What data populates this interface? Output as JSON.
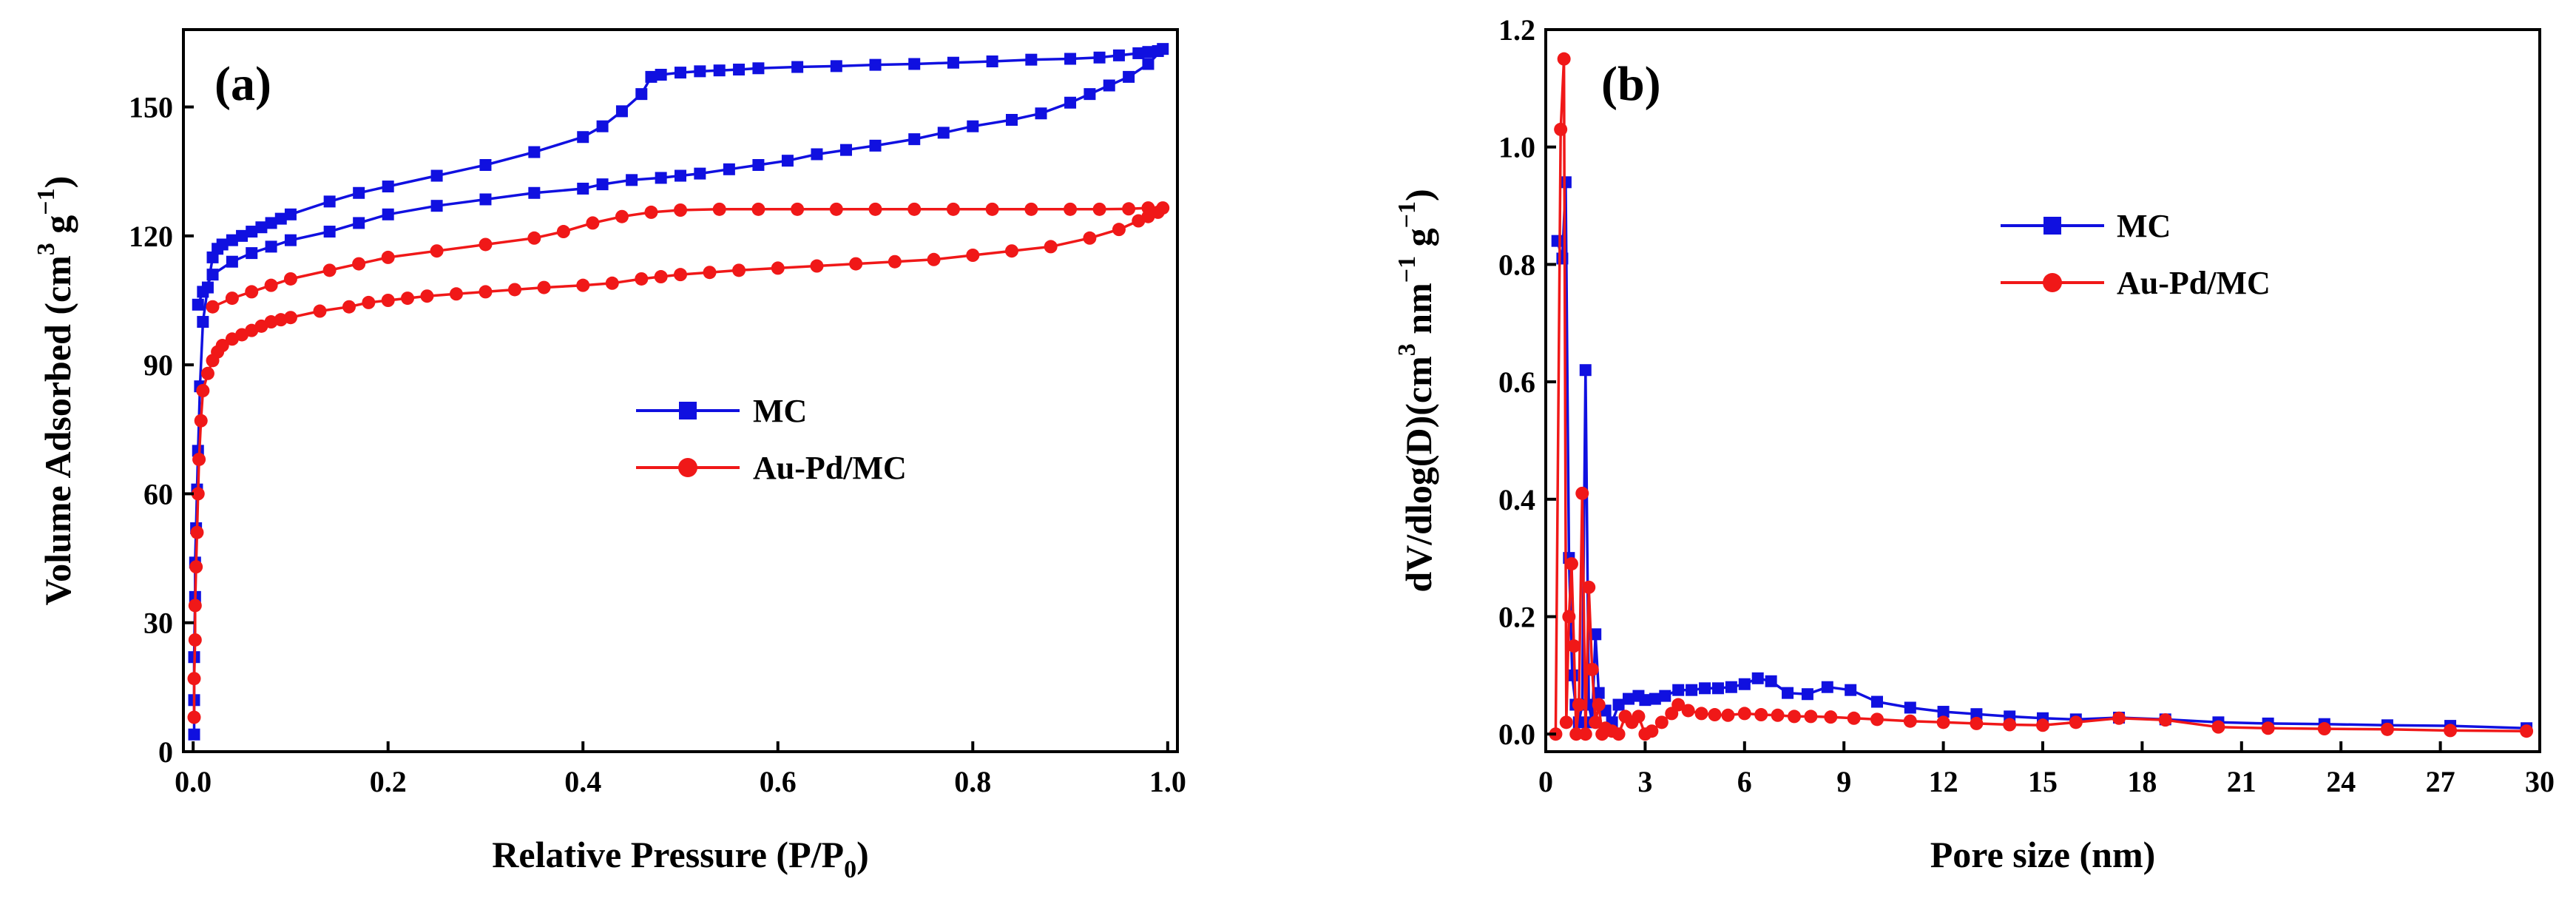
{
  "chart_data": [
    {
      "type": "line",
      "panel_label": "(a)",
      "xlabel": "Relative Pressure (P/P",
      "xlabel_sub": "0",
      "xlabel_end": ")",
      "ylabel": "Volume Adsorbed (cm",
      "ylabel_sup1": "3",
      "ylabel_mid": " g",
      "ylabel_sup2": "−1",
      "ylabel_end": ")",
      "xlim": [
        -0.01,
        1.01
      ],
      "ylim": [
        0,
        168
      ],
      "xticks": [
        0.0,
        0.2,
        0.4,
        0.6,
        0.8,
        1.0
      ],
      "xtick_labels": [
        "0.0",
        "0.2",
        "0.4",
        "0.6",
        "0.8",
        "1.0"
      ],
      "yticks": [
        0,
        30,
        60,
        90,
        120,
        150
      ],
      "ytick_labels": [
        "0",
        "30",
        "60",
        "90",
        "120",
        "150"
      ],
      "legend_position": "center",
      "series": [
        {
          "name": "MC",
          "color": "#1010e0",
          "marker": "square",
          "x": [
            0.001,
            0.001,
            0.001,
            0.002,
            0.002,
            0.003,
            0.004,
            0.005,
            0.007,
            0.01,
            0.015,
            0.02,
            0.025,
            0.03,
            0.04,
            0.05,
            0.06,
            0.07,
            0.08,
            0.09,
            0.1,
            0.14,
            0.17,
            0.2,
            0.25,
            0.3,
            0.35,
            0.4,
            0.42,
            0.44,
            0.46,
            0.47,
            0.48,
            0.5,
            0.52,
            0.54,
            0.56,
            0.58,
            0.62,
            0.66,
            0.7,
            0.74,
            0.78,
            0.82,
            0.86,
            0.9,
            0.93,
            0.95,
            0.97,
            0.98,
            0.99,
            0.995,
            0.98,
            0.96,
            0.94,
            0.92,
            0.9,
            0.87,
            0.84,
            0.8,
            0.77,
            0.74,
            0.7,
            0.67,
            0.64,
            0.61,
            0.58,
            0.55,
            0.52,
            0.5,
            0.48,
            0.45,
            0.42,
            0.4,
            0.35,
            0.3,
            0.25,
            0.2,
            0.17,
            0.14,
            0.1,
            0.08,
            0.06,
            0.04,
            0.02,
            0.01,
            0.005
          ],
          "y": [
            4,
            12,
            22,
            36,
            44,
            52,
            61,
            70,
            85,
            100,
            108,
            115,
            117,
            118,
            119,
            120,
            121,
            122,
            123,
            124,
            125,
            128,
            130,
            131.5,
            134,
            136.5,
            139.5,
            143,
            145.5,
            149,
            153,
            157,
            157.5,
            158,
            158.3,
            158.5,
            158.7,
            159,
            159.3,
            159.5,
            159.8,
            160,
            160.3,
            160.6,
            161,
            161.2,
            161.5,
            162,
            162.5,
            162.8,
            163,
            163.5,
            160,
            157,
            155,
            153,
            151,
            148.5,
            147,
            145.5,
            144,
            142.5,
            141,
            140,
            139,
            137.5,
            136.5,
            135.5,
            134.5,
            134,
            133.5,
            133,
            132,
            131,
            130,
            128.5,
            127,
            125,
            123,
            121,
            119,
            117.5,
            116,
            114,
            111,
            107,
            104
          ]
        },
        {
          "name": "Au-Pd/MC",
          "color": "#f01818",
          "marker": "circle",
          "x": [
            0.001,
            0.001,
            0.002,
            0.002,
            0.003,
            0.004,
            0.005,
            0.006,
            0.008,
            0.01,
            0.015,
            0.02,
            0.025,
            0.03,
            0.04,
            0.05,
            0.06,
            0.07,
            0.08,
            0.09,
            0.1,
            0.13,
            0.16,
            0.18,
            0.2,
            0.22,
            0.24,
            0.27,
            0.3,
            0.33,
            0.36,
            0.4,
            0.43,
            0.46,
            0.48,
            0.5,
            0.53,
            0.56,
            0.6,
            0.64,
            0.68,
            0.72,
            0.76,
            0.8,
            0.84,
            0.88,
            0.92,
            0.95,
            0.97,
            0.98,
            0.99,
            0.995,
            0.98,
            0.96,
            0.93,
            0.9,
            0.86,
            0.82,
            0.78,
            0.74,
            0.7,
            0.66,
            0.62,
            0.58,
            0.54,
            0.5,
            0.47,
            0.44,
            0.41,
            0.38,
            0.35,
            0.3,
            0.25,
            0.2,
            0.17,
            0.14,
            0.1,
            0.08,
            0.06,
            0.04,
            0.02
          ],
          "y": [
            8,
            17,
            26,
            34,
            43,
            51,
            60,
            68,
            77,
            84,
            88,
            91,
            93,
            94.5,
            96,
            97,
            98,
            99,
            100,
            100.5,
            101,
            102.5,
            103.5,
            104.5,
            105,
            105.5,
            106,
            106.5,
            107,
            107.5,
            108,
            108.5,
            109,
            110,
            110.5,
            111,
            111.5,
            112,
            112.5,
            113,
            113.5,
            114,
            114.5,
            115.5,
            116.5,
            117.5,
            119.5,
            121.5,
            123.5,
            124.5,
            125.5,
            126.5,
            126.5,
            126.3,
            126.2,
            126.2,
            126.2,
            126.2,
            126.2,
            126.2,
            126.2,
            126.2,
            126.2,
            126.2,
            126.2,
            126,
            125.5,
            124.5,
            123,
            121,
            119.5,
            118,
            116.5,
            115,
            113.5,
            112,
            110,
            108.5,
            107,
            105.5,
            103.5
          ]
        }
      ]
    },
    {
      "type": "line",
      "panel_label": "(b)",
      "xlabel": "Pore size (nm)",
      "ylabel": "dV/dlog(D)(cm",
      "ylabel_sup1": "3",
      "ylabel_mid": " nm",
      "ylabel_sup2": "−1",
      "ylabel_mid2": " g",
      "ylabel_sup3": "−1",
      "ylabel_end": ")",
      "xlim": [
        0,
        30
      ],
      "ylim": [
        -0.03,
        1.2
      ],
      "xticks": [
        0,
        3,
        6,
        9,
        12,
        15,
        18,
        21,
        24,
        27,
        30
      ],
      "xtick_labels": [
        "0",
        "3",
        "6",
        "9",
        "12",
        "15",
        "18",
        "21",
        "24",
        "27",
        "30"
      ],
      "yticks": [
        0.0,
        0.2,
        0.4,
        0.6,
        0.8,
        1.0,
        1.2
      ],
      "ytick_labels": [
        "0.0",
        "0.2",
        "0.4",
        "0.6",
        "0.8",
        "1.0",
        "1.2"
      ],
      "legend_position": "top-right",
      "series": [
        {
          "name": "MC",
          "color": "#1010e0",
          "marker": "square",
          "x": [
            0.35,
            0.5,
            0.6,
            0.7,
            0.8,
            0.9,
            1.0,
            1.1,
            1.2,
            1.3,
            1.4,
            1.5,
            1.6,
            1.8,
            2.0,
            2.2,
            2.5,
            2.8,
            3.0,
            3.3,
            3.6,
            4.0,
            4.4,
            4.8,
            5.2,
            5.6,
            6.0,
            6.4,
            6.8,
            7.3,
            7.9,
            8.5,
            9.2,
            10.0,
            11.0,
            12.0,
            13.0,
            14.0,
            15.0,
            16.0,
            17.3,
            18.7,
            20.3,
            21.8,
            23.5,
            25.4,
            27.3,
            29.6
          ],
          "y": [
            0.84,
            0.81,
            0.94,
            0.3,
            0.1,
            0.05,
            0.02,
            0.05,
            0.62,
            0.05,
            0.02,
            0.17,
            0.07,
            0.04,
            0.02,
            0.05,
            0.06,
            0.065,
            0.058,
            0.06,
            0.065,
            0.075,
            0.075,
            0.078,
            0.078,
            0.08,
            0.085,
            0.095,
            0.09,
            0.07,
            0.068,
            0.08,
            0.075,
            0.055,
            0.045,
            0.038,
            0.034,
            0.03,
            0.027,
            0.025,
            0.028,
            0.025,
            0.02,
            0.018,
            0.017,
            0.015,
            0.014,
            0.01
          ]
        },
        {
          "name": "Au-Pd/MC",
          "color": "#f01818",
          "marker": "circle",
          "x": [
            0.3,
            0.45,
            0.55,
            0.62,
            0.7,
            0.78,
            0.85,
            0.92,
            1.0,
            1.1,
            1.2,
            1.3,
            1.4,
            1.5,
            1.6,
            1.7,
            1.8,
            2.0,
            2.2,
            2.4,
            2.6,
            2.8,
            3.0,
            3.2,
            3.5,
            3.8,
            4.0,
            4.3,
            4.7,
            5.1,
            5.5,
            6.0,
            6.5,
            7.0,
            7.5,
            8.0,
            8.6,
            9.3,
            10.0,
            11.0,
            12.0,
            13.0,
            14.0,
            15.0,
            16.0,
            17.3,
            18.7,
            20.3,
            21.8,
            23.5,
            25.4,
            27.3,
            29.6
          ],
          "y": [
            0.0,
            1.03,
            1.15,
            0.02,
            0.2,
            0.29,
            0.15,
            0.0,
            0.05,
            0.41,
            0.0,
            0.25,
            0.11,
            0.02,
            0.05,
            0.0,
            0.01,
            0.005,
            0.0,
            0.03,
            0.02,
            0.03,
            0.0,
            0.005,
            0.02,
            0.035,
            0.05,
            0.04,
            0.035,
            0.033,
            0.032,
            0.035,
            0.033,
            0.032,
            0.03,
            0.03,
            0.029,
            0.027,
            0.025,
            0.022,
            0.02,
            0.018,
            0.016,
            0.015,
            0.02,
            0.027,
            0.024,
            0.012,
            0.01,
            0.009,
            0.008,
            0.006,
            0.005
          ]
        }
      ]
    }
  ]
}
